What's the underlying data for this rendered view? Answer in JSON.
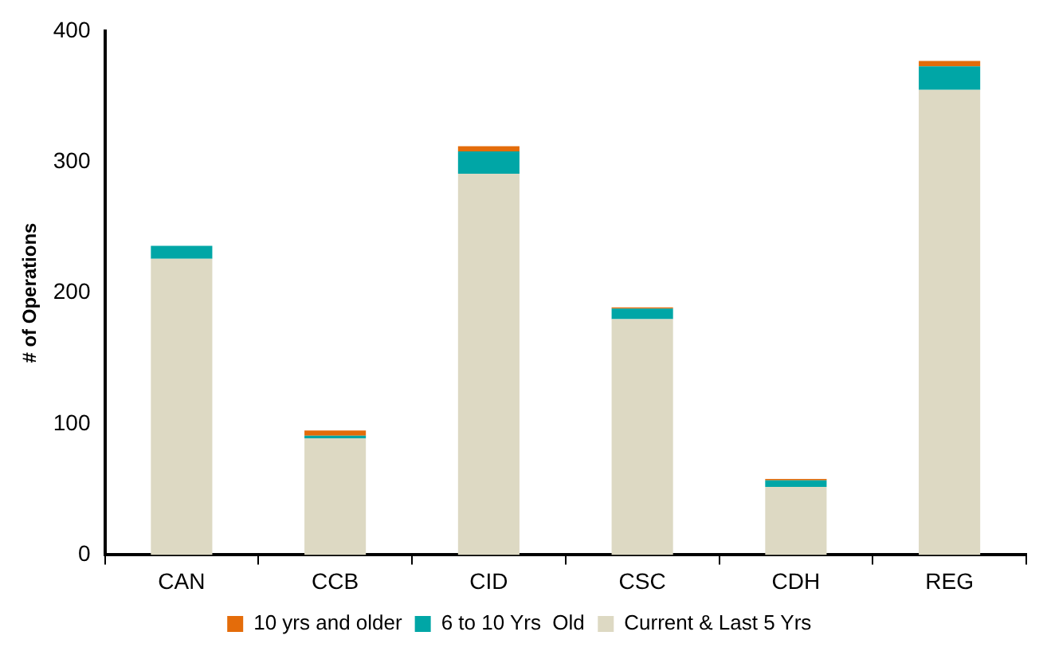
{
  "chart_data": {
    "type": "bar",
    "stacked": true,
    "ylabel": "# of Operations",
    "categories": [
      "CAN",
      "CCB",
      "CID",
      "CSC",
      "CDH",
      "REG"
    ],
    "series": [
      {
        "name": "Current & Last 5 Yrs",
        "color": "#ddd9c3",
        "values": [
          226,
          89,
          291,
          180,
          52,
          355
        ]
      },
      {
        "name": "6 to 10 Yrs  Old",
        "color": "#00a6a6",
        "values": [
          10,
          2,
          17,
          8,
          5,
          18
        ]
      },
      {
        "name": "10 yrs and older",
        "color": "#e46c0a",
        "values": [
          0,
          4,
          4,
          1,
          1,
          4
        ]
      }
    ],
    "ylim": [
      0,
      400
    ],
    "yticks": [
      0,
      100,
      200,
      300,
      400
    ],
    "grid": false,
    "legend": "bottom"
  }
}
